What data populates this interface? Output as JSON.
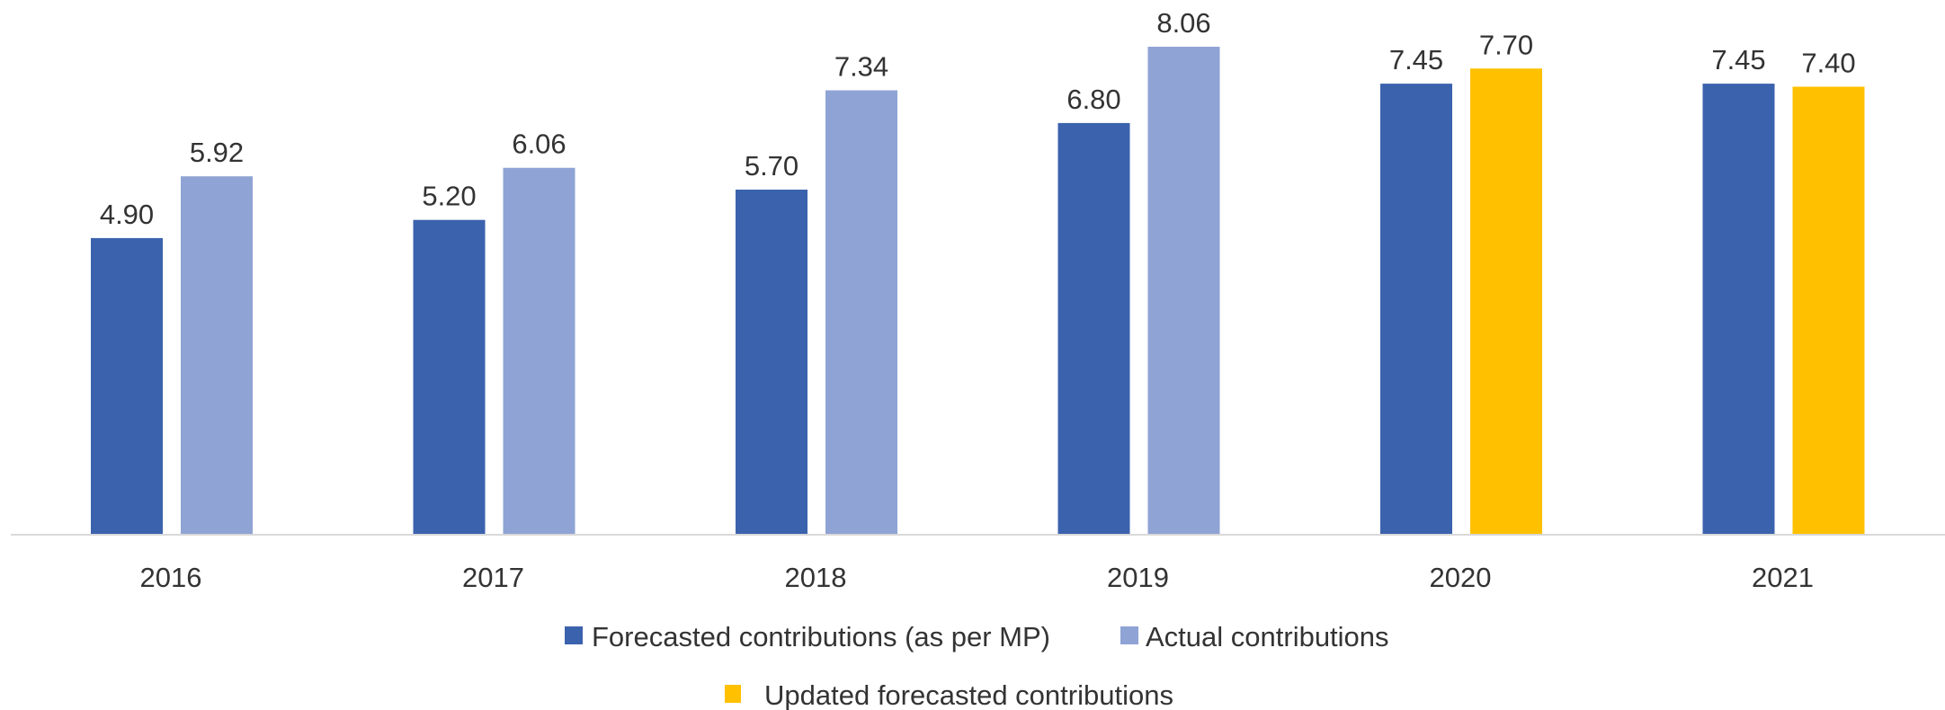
{
  "chart_data": {
    "type": "bar",
    "categories": [
      "2016",
      "2017",
      "2018",
      "2019",
      "2020",
      "2021"
    ],
    "series": [
      {
        "name": "Forecasted contributions (as per MP)",
        "color": "#3b62ad",
        "values": [
          4.9,
          5.2,
          5.7,
          6.8,
          7.45,
          7.45
        ],
        "labels": [
          "4.90",
          "5.20",
          "5.70",
          "6.80",
          "7.45",
          "7.45"
        ]
      },
      {
        "name": "Actual contributions",
        "color": "#8fa3d4",
        "values": [
          5.92,
          6.06,
          7.34,
          8.06,
          null,
          null
        ],
        "labels": [
          "5.92",
          "6.06",
          "7.34",
          "8.06",
          null,
          null
        ]
      },
      {
        "name": "Updated forecasted contributions",
        "color": "#ffc000",
        "values": [
          null,
          null,
          null,
          null,
          7.7,
          7.4
        ],
        "labels": [
          null,
          null,
          null,
          null,
          "7.70",
          "7.40"
        ]
      }
    ],
    "ylim": [
      0,
      8.06
    ],
    "title": "",
    "xlabel": "",
    "ylabel": "",
    "grid": false,
    "legend_position": "bottom",
    "axis_color": "#d9d9d9"
  }
}
